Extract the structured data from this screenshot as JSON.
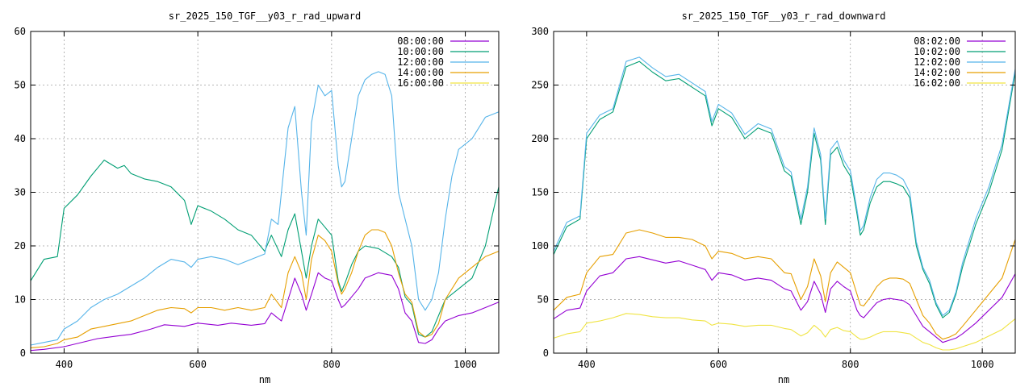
{
  "chart_data": [
    {
      "type": "line",
      "title": "sr_2025_150_TGF__y03_r_rad_upward",
      "xlabel": "nm",
      "ylabel": "",
      "xlim": [
        350,
        1050
      ],
      "ylim": [
        0,
        60
      ],
      "xticks": [
        400,
        600,
        800,
        1000
      ],
      "yticks": [
        0,
        10,
        20,
        30,
        40,
        50,
        60
      ],
      "grid": true,
      "legend": "top-right",
      "series": [
        {
          "name": "08:00:00",
          "color": "#9400d3",
          "x": [
            350,
            370,
            400,
            420,
            450,
            480,
            500,
            530,
            550,
            580,
            600,
            630,
            650,
            680,
            700,
            710,
            725,
            735,
            745,
            755,
            762,
            770,
            780,
            790,
            800,
            810,
            815,
            820,
            830,
            840,
            850,
            870,
            890,
            900,
            910,
            920,
            930,
            940,
            950,
            960,
            970,
            990,
            1010,
            1030,
            1050
          ],
          "y": [
            0.5,
            0.7,
            1.2,
            1.8,
            2.7,
            3.2,
            3.5,
            4.5,
            5.3,
            5.0,
            5.6,
            5.2,
            5.6,
            5.2,
            5.5,
            7.5,
            6.0,
            10.0,
            14.0,
            11.0,
            8.0,
            11.0,
            15.0,
            14.0,
            13.5,
            10.0,
            8.5,
            9.0,
            10.5,
            12.0,
            14.0,
            15.0,
            14.5,
            12.0,
            7.5,
            6.0,
            2.0,
            1.8,
            2.5,
            4.5,
            6.0,
            7.0,
            7.5,
            8.5,
            9.5
          ]
        },
        {
          "name": "10:00:00",
          "color": "#009e73",
          "x": [
            350,
            370,
            390,
            400,
            420,
            440,
            460,
            480,
            490,
            500,
            520,
            540,
            560,
            580,
            590,
            600,
            620,
            640,
            660,
            680,
            700,
            710,
            725,
            735,
            745,
            755,
            762,
            770,
            780,
            790,
            800,
            810,
            815,
            820,
            830,
            840,
            850,
            870,
            890,
            900,
            910,
            920,
            930,
            940,
            950,
            960,
            970,
            990,
            1010,
            1030,
            1050
          ],
          "y": [
            13.5,
            17.5,
            18.0,
            27.0,
            29.5,
            33.0,
            36.0,
            34.5,
            35.0,
            33.5,
            32.5,
            32.0,
            31.0,
            28.5,
            24.0,
            27.5,
            26.5,
            25.0,
            23.0,
            22.0,
            19.0,
            22.0,
            18.0,
            23.0,
            26.0,
            19.0,
            14.0,
            20.0,
            25.0,
            23.5,
            22.0,
            13.5,
            11.5,
            13.0,
            16.5,
            19.0,
            20.0,
            19.5,
            18.0,
            16.0,
            10.5,
            9.0,
            3.5,
            3.0,
            4.0,
            7.0,
            10.0,
            12.0,
            14.0,
            20.0,
            31.0
          ]
        },
        {
          "name": "12:00:00",
          "color": "#56b4e9",
          "x": [
            350,
            370,
            390,
            400,
            420,
            440,
            460,
            480,
            500,
            520,
            540,
            560,
            580,
            590,
            600,
            620,
            640,
            660,
            680,
            700,
            710,
            720,
            735,
            745,
            755,
            762,
            770,
            780,
            790,
            800,
            810,
            815,
            820,
            830,
            840,
            850,
            860,
            870,
            880,
            890,
            900,
            910,
            920,
            930,
            940,
            950,
            960,
            970,
            980,
            990,
            1010,
            1030,
            1050
          ],
          "y": [
            1.5,
            2.0,
            2.5,
            4.5,
            6.0,
            8.5,
            10.0,
            11.0,
            12.5,
            14.0,
            16.0,
            17.5,
            17.0,
            16.0,
            17.5,
            18.0,
            17.5,
            16.5,
            17.5,
            18.5,
            25.0,
            24.0,
            42.0,
            46.0,
            30.0,
            22.0,
            43.0,
            50.0,
            48.0,
            49.0,
            35.0,
            31.0,
            32.0,
            40.0,
            48.0,
            51.0,
            52.0,
            52.5,
            52.0,
            48.0,
            30.0,
            25.0,
            20.0,
            10.0,
            8.0,
            10.0,
            15.0,
            25.0,
            33.0,
            38.0,
            40.0,
            44.0,
            45.0
          ]
        },
        {
          "name": "14:00:00",
          "color": "#e69f00",
          "x": [
            350,
            370,
            390,
            400,
            420,
            440,
            460,
            480,
            500,
            520,
            540,
            560,
            580,
            590,
            600,
            620,
            640,
            660,
            680,
            700,
            710,
            725,
            735,
            745,
            755,
            762,
            770,
            780,
            790,
            800,
            810,
            815,
            820,
            830,
            840,
            850,
            860,
            870,
            880,
            890,
            900,
            910,
            920,
            930,
            940,
            950,
            960,
            970,
            990,
            1010,
            1030,
            1050
          ],
          "y": [
            1.0,
            1.2,
            1.8,
            2.5,
            3.0,
            4.5,
            5.0,
            5.5,
            6.0,
            7.0,
            8.0,
            8.5,
            8.3,
            7.5,
            8.5,
            8.5,
            8.0,
            8.5,
            8.0,
            8.5,
            11.0,
            8.5,
            15.0,
            18.0,
            15.0,
            10.0,
            17.5,
            22.0,
            21.0,
            19.0,
            13.0,
            11.0,
            12.0,
            15.0,
            19.0,
            22.0,
            23.0,
            23.0,
            22.5,
            20.0,
            15.0,
            11.0,
            9.5,
            4.0,
            3.0,
            3.5,
            5.5,
            10.0,
            14.0,
            16.0,
            18.0,
            19.0
          ]
        },
        {
          "name": "16:00:00",
          "color": "#f0e442",
          "x": [],
          "y": []
        }
      ]
    },
    {
      "type": "line",
      "title": "sr_2025_150_TGF__y03_r_rad_downward",
      "xlabel": "nm",
      "ylabel": "",
      "xlim": [
        350,
        1050
      ],
      "ylim": [
        0,
        300
      ],
      "xticks": [
        400,
        600,
        800,
        1000
      ],
      "yticks": [
        0,
        50,
        100,
        150,
        200,
        250,
        300
      ],
      "grid": true,
      "legend": "top-right",
      "series": [
        {
          "name": "08:02:00",
          "color": "#9400d3",
          "x": [
            350,
            370,
            390,
            400,
            420,
            440,
            460,
            480,
            500,
            520,
            540,
            560,
            580,
            590,
            600,
            620,
            640,
            660,
            680,
            700,
            710,
            725,
            735,
            745,
            755,
            762,
            770,
            780,
            790,
            800,
            810,
            815,
            820,
            830,
            840,
            850,
            860,
            870,
            880,
            890,
            900,
            910,
            920,
            930,
            940,
            950,
            960,
            970,
            990,
            1010,
            1030,
            1050
          ],
          "y": [
            32,
            40,
            42,
            58,
            72,
            75,
            88,
            90,
            87,
            84,
            86,
            82,
            78,
            68,
            75,
            73,
            68,
            70,
            68,
            60,
            58,
            40,
            48,
            67,
            55,
            38,
            60,
            67,
            62,
            58,
            40,
            35,
            33,
            40,
            47,
            50,
            51,
            50,
            49,
            45,
            35,
            25,
            20,
            15,
            10,
            12,
            14,
            18,
            28,
            40,
            52,
            74
          ]
        },
        {
          "name": "10:02:00",
          "color": "#009e73",
          "x": [
            350,
            370,
            390,
            400,
            420,
            440,
            460,
            480,
            500,
            520,
            540,
            560,
            580,
            590,
            600,
            620,
            640,
            660,
            680,
            700,
            710,
            725,
            735,
            745,
            755,
            762,
            770,
            780,
            790,
            800,
            810,
            815,
            820,
            830,
            840,
            850,
            860,
            870,
            880,
            890,
            900,
            910,
            920,
            930,
            940,
            950,
            960,
            970,
            990,
            1010,
            1030,
            1050
          ],
          "y": [
            92,
            118,
            125,
            200,
            218,
            225,
            267,
            272,
            262,
            254,
            256,
            248,
            240,
            212,
            228,
            220,
            200,
            210,
            205,
            170,
            165,
            120,
            150,
            205,
            180,
            120,
            185,
            192,
            175,
            165,
            130,
            110,
            115,
            140,
            155,
            160,
            160,
            158,
            155,
            145,
            100,
            78,
            65,
            45,
            33,
            38,
            55,
            80,
            120,
            150,
            190,
            262
          ]
        },
        {
          "name": "12:02:00",
          "color": "#56b4e9",
          "x": [
            350,
            370,
            390,
            400,
            420,
            440,
            460,
            480,
            500,
            520,
            540,
            560,
            580,
            590,
            600,
            620,
            640,
            660,
            680,
            700,
            710,
            725,
            735,
            745,
            755,
            762,
            770,
            780,
            790,
            800,
            810,
            815,
            820,
            830,
            840,
            850,
            860,
            870,
            880,
            890,
            900,
            910,
            920,
            930,
            940,
            950,
            960,
            970,
            990,
            1010,
            1030,
            1050
          ],
          "y": [
            95,
            122,
            128,
            205,
            222,
            228,
            272,
            276,
            266,
            258,
            260,
            252,
            244,
            216,
            232,
            224,
            204,
            214,
            209,
            174,
            169,
            125,
            155,
            210,
            185,
            125,
            190,
            198,
            180,
            170,
            134,
            114,
            119,
            145,
            162,
            168,
            168,
            166,
            162,
            150,
            104,
            80,
            68,
            47,
            35,
            40,
            57,
            84,
            125,
            155,
            195,
            265
          ]
        },
        {
          "name": "14:02:00",
          "color": "#e69f00",
          "x": [
            350,
            370,
            390,
            400,
            420,
            440,
            460,
            480,
            500,
            520,
            540,
            560,
            580,
            590,
            600,
            620,
            640,
            660,
            680,
            700,
            710,
            725,
            735,
            745,
            755,
            762,
            770,
            780,
            790,
            800,
            810,
            815,
            820,
            830,
            840,
            850,
            860,
            870,
            880,
            890,
            900,
            910,
            920,
            930,
            940,
            950,
            960,
            970,
            990,
            1010,
            1030,
            1050
          ],
          "y": [
            40,
            52,
            55,
            75,
            90,
            92,
            112,
            115,
            112,
            108,
            108,
            106,
            100,
            88,
            95,
            93,
            88,
            90,
            88,
            75,
            74,
            50,
            62,
            88,
            72,
            48,
            75,
            85,
            80,
            75,
            55,
            45,
            44,
            52,
            62,
            68,
            70,
            70,
            69,
            65,
            50,
            35,
            28,
            18,
            13,
            15,
            18,
            25,
            40,
            55,
            70,
            106
          ]
        },
        {
          "name": "16:02:00",
          "color": "#f0e442",
          "x": [
            350,
            370,
            390,
            400,
            420,
            440,
            460,
            480,
            500,
            520,
            540,
            560,
            580,
            590,
            600,
            620,
            640,
            660,
            680,
            700,
            710,
            725,
            735,
            745,
            755,
            762,
            770,
            780,
            790,
            800,
            810,
            815,
            820,
            830,
            840,
            850,
            860,
            870,
            880,
            890,
            900,
            910,
            920,
            930,
            940,
            950,
            960,
            970,
            990,
            1010,
            1030,
            1050
          ],
          "y": [
            14,
            18,
            20,
            28,
            30,
            33,
            37,
            36,
            34,
            33,
            33,
            31,
            30,
            26,
            28,
            27,
            25,
            26,
            26,
            23,
            22,
            16,
            19,
            26,
            21,
            15,
            22,
            24,
            21,
            20,
            15,
            13,
            13,
            15,
            18,
            20,
            20,
            20,
            19,
            18,
            14,
            10,
            8,
            5,
            3,
            3,
            4,
            6,
            10,
            16,
            22,
            32
          ]
        }
      ]
    }
  ]
}
